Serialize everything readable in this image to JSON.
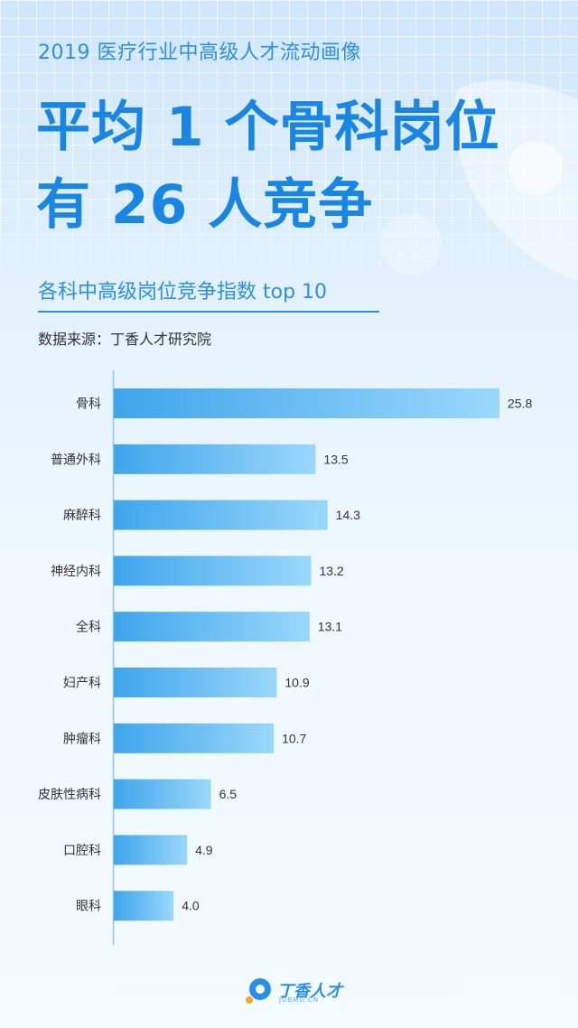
{
  "header": {
    "subtitle": "2019 医疗行业中高级人才流动画像",
    "headline_line1": "平均 1 个骨科岗位",
    "headline_line2": "有 26 人竞争"
  },
  "chart_data": {
    "type": "bar",
    "orientation": "horizontal",
    "title": "各科中高级岗位竞争指数 top 10",
    "source": "数据来源：丁香人才研究院",
    "categories": [
      "骨科",
      "普通外科",
      "麻醉科",
      "神经内科",
      "全科",
      "妇产科",
      "肿瘤科",
      "皮肤性病科",
      "口腔科",
      "眼科"
    ],
    "values": [
      25.8,
      13.5,
      14.3,
      13.2,
      13.1,
      10.9,
      10.7,
      6.5,
      4.9,
      4.0
    ],
    "value_labels": [
      "25.8",
      "13.5",
      "14.3",
      "13.2",
      "13.1",
      "10.9",
      "10.7",
      "6.5",
      "4.9",
      "4.0"
    ],
    "xlim": [
      0,
      25.8
    ],
    "colors": {
      "bar_start": "#3ea5ec",
      "bar_end": "#9ad8fb",
      "axis": "#8fc6f2",
      "label": "#333333"
    }
  },
  "footer": {
    "logo_text": "丁香人才",
    "logo_subtext": "JOBMD.CN",
    "logo_icon": "dxy-logo-icon"
  }
}
